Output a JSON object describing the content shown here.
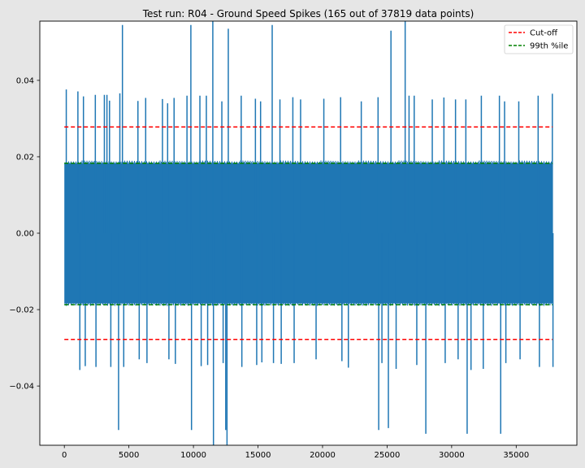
{
  "chart_data": {
    "type": "line",
    "title": "Test run: R04 - Ground Speed Spikes (165 out of 37819 data points)",
    "xlabel": "",
    "ylabel": "",
    "xlim": [
      -1900,
      39700
    ],
    "ylim": [
      -0.0555,
      0.0555
    ],
    "x_ticks": [
      0,
      5000,
      10000,
      15000,
      20000,
      25000,
      30000,
      35000
    ],
    "x_tick_labels": [
      "0",
      "5000",
      "10000",
      "15000",
      "20000",
      "25000",
      "30000",
      "35000"
    ],
    "y_ticks": [
      -0.04,
      -0.02,
      0.0,
      0.02,
      0.04
    ],
    "y_tick_labels": [
      "−0.04",
      "−0.02",
      "0.00",
      "0.02",
      "0.04"
    ],
    "grid": false,
    "legend_position": "top-right",
    "series": [
      {
        "name": "",
        "color": "#1f77b4",
        "style": "solid",
        "x_range": [
          0,
          37818
        ],
        "band": [
          -0.0183,
          0.0183
        ],
        "spike_points": [
          [
            150,
            0.0376
          ],
          [
            1050,
            0.0371
          ],
          [
            1200,
            -0.0358
          ],
          [
            1480,
            0.0358
          ],
          [
            1620,
            -0.0348
          ],
          [
            2400,
            0.0362
          ],
          [
            2450,
            -0.035
          ],
          [
            3100,
            0.0362
          ],
          [
            3300,
            0.0362
          ],
          [
            3500,
            0.0347
          ],
          [
            3600,
            -0.035
          ],
          [
            4200,
            -0.0515
          ],
          [
            4300,
            0.0366
          ],
          [
            4500,
            0.0545
          ],
          [
            4600,
            -0.035
          ],
          [
            5700,
            0.0346
          ],
          [
            5800,
            -0.033
          ],
          [
            6300,
            0.0354
          ],
          [
            6400,
            -0.034
          ],
          [
            7600,
            0.0351
          ],
          [
            8000,
            0.034
          ],
          [
            8100,
            -0.033
          ],
          [
            8500,
            0.0354
          ],
          [
            8600,
            -0.0342
          ],
          [
            9500,
            0.036
          ],
          [
            9800,
            0.0545
          ],
          [
            9850,
            -0.0515
          ],
          [
            10500,
            0.036
          ],
          [
            10600,
            -0.0348
          ],
          [
            11000,
            0.036
          ],
          [
            11100,
            -0.0345
          ],
          [
            11500,
            0.0555
          ],
          [
            11550,
            -0.0555
          ],
          [
            12200,
            0.0345
          ],
          [
            12300,
            -0.034
          ],
          [
            12500,
            -0.0515
          ],
          [
            12600,
            -0.0555
          ],
          [
            12700,
            0.0535
          ],
          [
            13700,
            0.036
          ],
          [
            13750,
            -0.035
          ],
          [
            14800,
            0.0352
          ],
          [
            14900,
            -0.0345
          ],
          [
            15200,
            0.0345
          ],
          [
            15300,
            -0.0338
          ],
          [
            16100,
            0.0545
          ],
          [
            16200,
            -0.034
          ],
          [
            16700,
            0.035
          ],
          [
            16800,
            -0.0342
          ],
          [
            17700,
            0.0356
          ],
          [
            17800,
            -0.034
          ],
          [
            18300,
            0.035
          ],
          [
            19500,
            -0.033
          ],
          [
            20100,
            0.0352
          ],
          [
            21400,
            0.0356
          ],
          [
            21500,
            -0.0335
          ],
          [
            22000,
            -0.0352
          ],
          [
            23000,
            0.0345
          ],
          [
            24300,
            0.0356
          ],
          [
            24350,
            -0.0515
          ],
          [
            24600,
            -0.034
          ],
          [
            25100,
            -0.051
          ],
          [
            25300,
            0.053
          ],
          [
            25700,
            -0.0355
          ],
          [
            26400,
            0.0555
          ],
          [
            26700,
            0.036
          ],
          [
            27100,
            0.036
          ],
          [
            27300,
            -0.0345
          ],
          [
            28000,
            -0.0525
          ],
          [
            28500,
            0.035
          ],
          [
            29400,
            0.0355
          ],
          [
            29500,
            -0.034
          ],
          [
            30300,
            0.035
          ],
          [
            30500,
            -0.033
          ],
          [
            31100,
            0.035
          ],
          [
            31200,
            -0.0525
          ],
          [
            31500,
            -0.0358
          ],
          [
            32300,
            0.036
          ],
          [
            32450,
            -0.0355
          ],
          [
            33700,
            0.036
          ],
          [
            33800,
            -0.0525
          ],
          [
            34100,
            0.0345
          ],
          [
            34200,
            -0.034
          ],
          [
            35200,
            0.0345
          ],
          [
            35300,
            -0.033
          ],
          [
            36700,
            0.036
          ],
          [
            36800,
            -0.035
          ],
          [
            37800,
            0.0365
          ],
          [
            37850,
            -0.035
          ]
        ]
      },
      {
        "name": "Cut-off",
        "color": "#ff0000",
        "style": "dashed",
        "x_range": [
          0,
          37818
        ],
        "y_values": [
          0.0278,
          -0.0278
        ]
      },
      {
        "name": "99th %ile",
        "color": "#008000",
        "style": "dashed",
        "x_range": [
          0,
          37818
        ],
        "y_values": [
          0.0183,
          -0.0187
        ]
      }
    ]
  }
}
